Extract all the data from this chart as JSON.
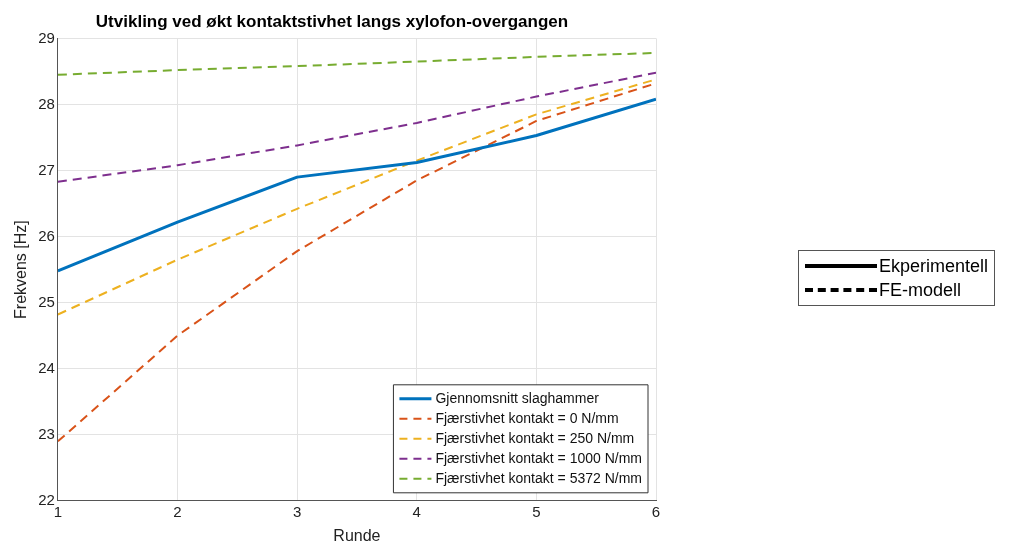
{
  "chart_data": {
    "type": "line",
    "title": "Utvikling ved økt kontaktstivhet langs xylofon-overgangen",
    "xlabel": "Runde",
    "ylabel": "Frekvens [Hz]",
    "x": [
      1,
      2,
      3,
      4,
      5,
      6
    ],
    "xlim": [
      1,
      6
    ],
    "xticks": [
      1,
      2,
      3,
      4,
      5,
      6
    ],
    "ylim": [
      22,
      29
    ],
    "yticks": [
      22,
      23,
      24,
      25,
      26,
      27,
      28,
      29
    ],
    "grid": true,
    "legend": "bottom right",
    "marker": "none",
    "series": [
      {
        "name": "Gjennomsnitt slaghammer",
        "color": "#0072bd",
        "line_style": "solid",
        "values": [
          25.48,
          26.22,
          26.9,
          27.12,
          27.53,
          28.08
        ]
      },
      {
        "name": "Fjærstivhet kontakt = 0 N/mm",
        "color": "#d95319",
        "line_style": "dashed",
        "values": [
          22.9,
          24.5,
          25.78,
          26.85,
          27.75,
          28.32
        ]
      },
      {
        "name": "Fjærstivhet kontakt = 250 N/mm",
        "color": "#edb120",
        "line_style": "dashed",
        "values": [
          24.82,
          25.65,
          26.42,
          27.15,
          27.85,
          28.38
        ]
      },
      {
        "name": "Fjærstivhet kontakt = 1000 N/mm",
        "color": "#7e2f8e",
        "line_style": "dashed",
        "values": [
          26.83,
          27.08,
          27.38,
          27.72,
          28.12,
          28.48
        ]
      },
      {
        "name": "Fjærstivhet kontakt = 5372 N/mm",
        "color": "#77ac30",
        "line_style": "dashed",
        "values": [
          28.45,
          28.52,
          28.58,
          28.65,
          28.72,
          28.78
        ]
      }
    ],
    "annotations": [
      "Ekperimentell",
      "FE-modell"
    ]
  }
}
